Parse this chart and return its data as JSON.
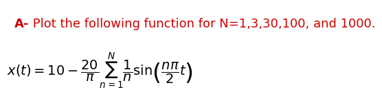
{
  "title_bold": "A-",
  "title_text": " Plot the following function for N=1,3,30,100, and 1000.",
  "title_color_bold": "#cc0000",
  "title_color_text": "#cc0000",
  "equation_left": "x(t) = 10 −",
  "equation_frac_num": "20",
  "equation_frac_den": "π",
  "equation_sum_top": "N",
  "equation_sum_bot": "n=1",
  "equation_sum_body": "1",
  "equation_sum_body2": "n",
  "equation_sin": "sin",
  "equation_sin_arg_num": "nπ",
  "equation_sin_arg_den": "2",
  "equation_sin_arg_t": "t",
  "background_color": "#ffffff",
  "text_color": "#000000",
  "title_fontsize": 13,
  "eq_fontsize": 14
}
